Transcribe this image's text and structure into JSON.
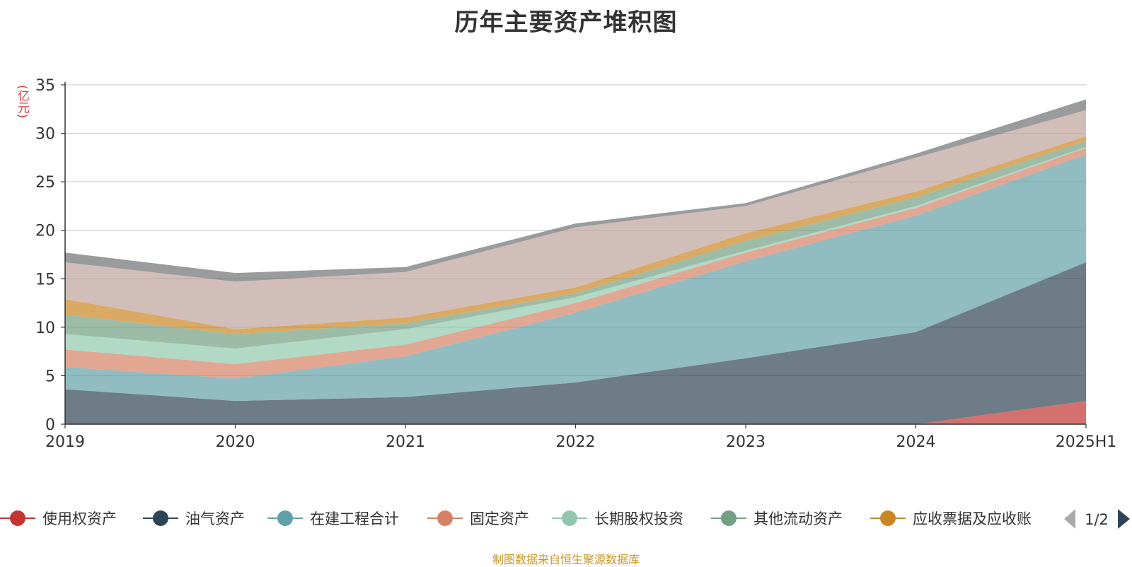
{
  "title": "历年主要资产堆积图",
  "unit_label": "(亿元)",
  "source_note": "制图数据来自恒生聚源数据库",
  "legend": {
    "page_indicator": "1/2",
    "prev_icon": "triangle-left-icon",
    "next_icon": "triangle-right-icon"
  },
  "chart_data": {
    "type": "area",
    "stacked": true,
    "grid": true,
    "x": [
      "2019",
      "2020",
      "2021",
      "2022",
      "2023",
      "2024",
      "2025H1"
    ],
    "ylim": [
      0,
      35
    ],
    "yticks": [
      0,
      5,
      10,
      15,
      20,
      25,
      30,
      35
    ],
    "series": [
      {
        "name": "使用权资产",
        "color": "#c23531",
        "values": [
          0,
          0,
          0,
          0,
          0,
          0,
          2.4
        ]
      },
      {
        "name": "油气资产",
        "color": "#2f4554",
        "values": [
          3.6,
          2.4,
          2.8,
          4.3,
          6.8,
          9.5,
          14.3
        ]
      },
      {
        "name": "在建工程合计",
        "color": "#61a0a8",
        "values": [
          2.3,
          2.3,
          4.2,
          7.2,
          10.0,
          12.0,
          11.1
        ]
      },
      {
        "name": "固定资产",
        "color": "#d48265",
        "values": [
          1.8,
          1.5,
          1.2,
          1.0,
          0.9,
          0.8,
          0.7
        ]
      },
      {
        "name": "长期股权投资",
        "color": "#91c7ae",
        "values": [
          1.6,
          1.6,
          1.6,
          0.6,
          0.2,
          0.2,
          0.1
        ]
      },
      {
        "name": "其他流动资产",
        "color": "#749f83",
        "values": [
          2.0,
          1.5,
          0.6,
          0.4,
          1.0,
          0.9,
          0.6
        ]
      },
      {
        "name": "应收票据及应收账",
        "color": "#ca8622",
        "values": [
          1.6,
          0.5,
          0.6,
          0.6,
          0.8,
          0.6,
          0.5
        ]
      },
      {
        "color": "#bda29a",
        "values": [
          3.8,
          4.9,
          4.7,
          6.2,
          2.8,
          3.5,
          2.7
        ]
      },
      {
        "color": "#6e7074",
        "values": [
          1.0,
          0.9,
          0.5,
          0.4,
          0.3,
          0.4,
          1.1
        ]
      }
    ]
  }
}
